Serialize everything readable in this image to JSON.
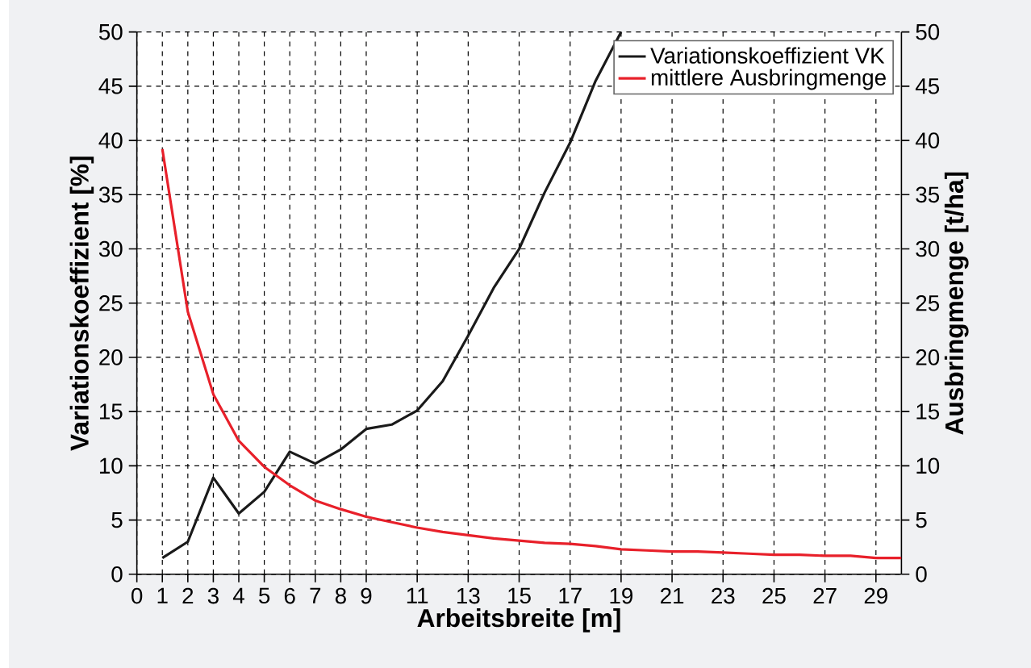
{
  "chart_data": {
    "type": "line",
    "xlabel": "Arbeitsbreite [m]",
    "ylabel": "Variationskoeffizient [%]",
    "y2label": "Ausbringmenge [t/ha]",
    "xlim": [
      0,
      30
    ],
    "xticks": [
      0,
      1,
      2,
      3,
      4,
      5,
      6,
      7,
      8,
      9,
      11,
      13,
      15,
      17,
      19,
      21,
      23,
      25,
      27,
      29
    ],
    "ylim": [
      0,
      50
    ],
    "yticks": [
      0,
      5,
      10,
      15,
      20,
      25,
      30,
      35,
      40,
      45,
      50
    ],
    "y2lim": [
      0,
      50
    ],
    "y2ticks": [
      0,
      5,
      10,
      15,
      20,
      25,
      30,
      35,
      40,
      45,
      50
    ],
    "grid": true,
    "legend": "top right",
    "series": [
      {
        "name": "Variationskoeffizient VK",
        "color": "#1a1a1a",
        "x": [
          1,
          2,
          3,
          4,
          5,
          6,
          7,
          8,
          9,
          10,
          11,
          12,
          13,
          14,
          15,
          16,
          17,
          18,
          19
        ],
        "values": [
          1.5,
          3.0,
          8.9,
          5.6,
          7.6,
          11.3,
          10.2,
          11.5,
          13.4,
          13.8,
          15.1,
          17.8,
          22.0,
          26.4,
          30.0,
          35.2,
          39.8,
          45.5,
          50
        ]
      },
      {
        "name": "mittlere Ausbringmenge",
        "color": "#e8202a",
        "axis": "y2",
        "x": [
          1,
          2,
          3,
          4,
          5,
          6,
          7,
          8,
          9,
          10,
          11,
          12,
          13,
          14,
          15,
          16,
          17,
          18,
          19,
          20,
          21,
          22,
          23,
          24,
          25,
          26,
          27,
          28,
          29,
          30
        ],
        "values": [
          39.2,
          24.2,
          16.6,
          12.3,
          9.9,
          8.2,
          6.8,
          6.0,
          5.3,
          4.8,
          4.3,
          3.9,
          3.6,
          3.3,
          3.1,
          2.9,
          2.8,
          2.6,
          2.3,
          2.2,
          2.1,
          2.1,
          2.0,
          1.9,
          1.8,
          1.8,
          1.7,
          1.7,
          1.5,
          1.5
        ]
      }
    ]
  }
}
